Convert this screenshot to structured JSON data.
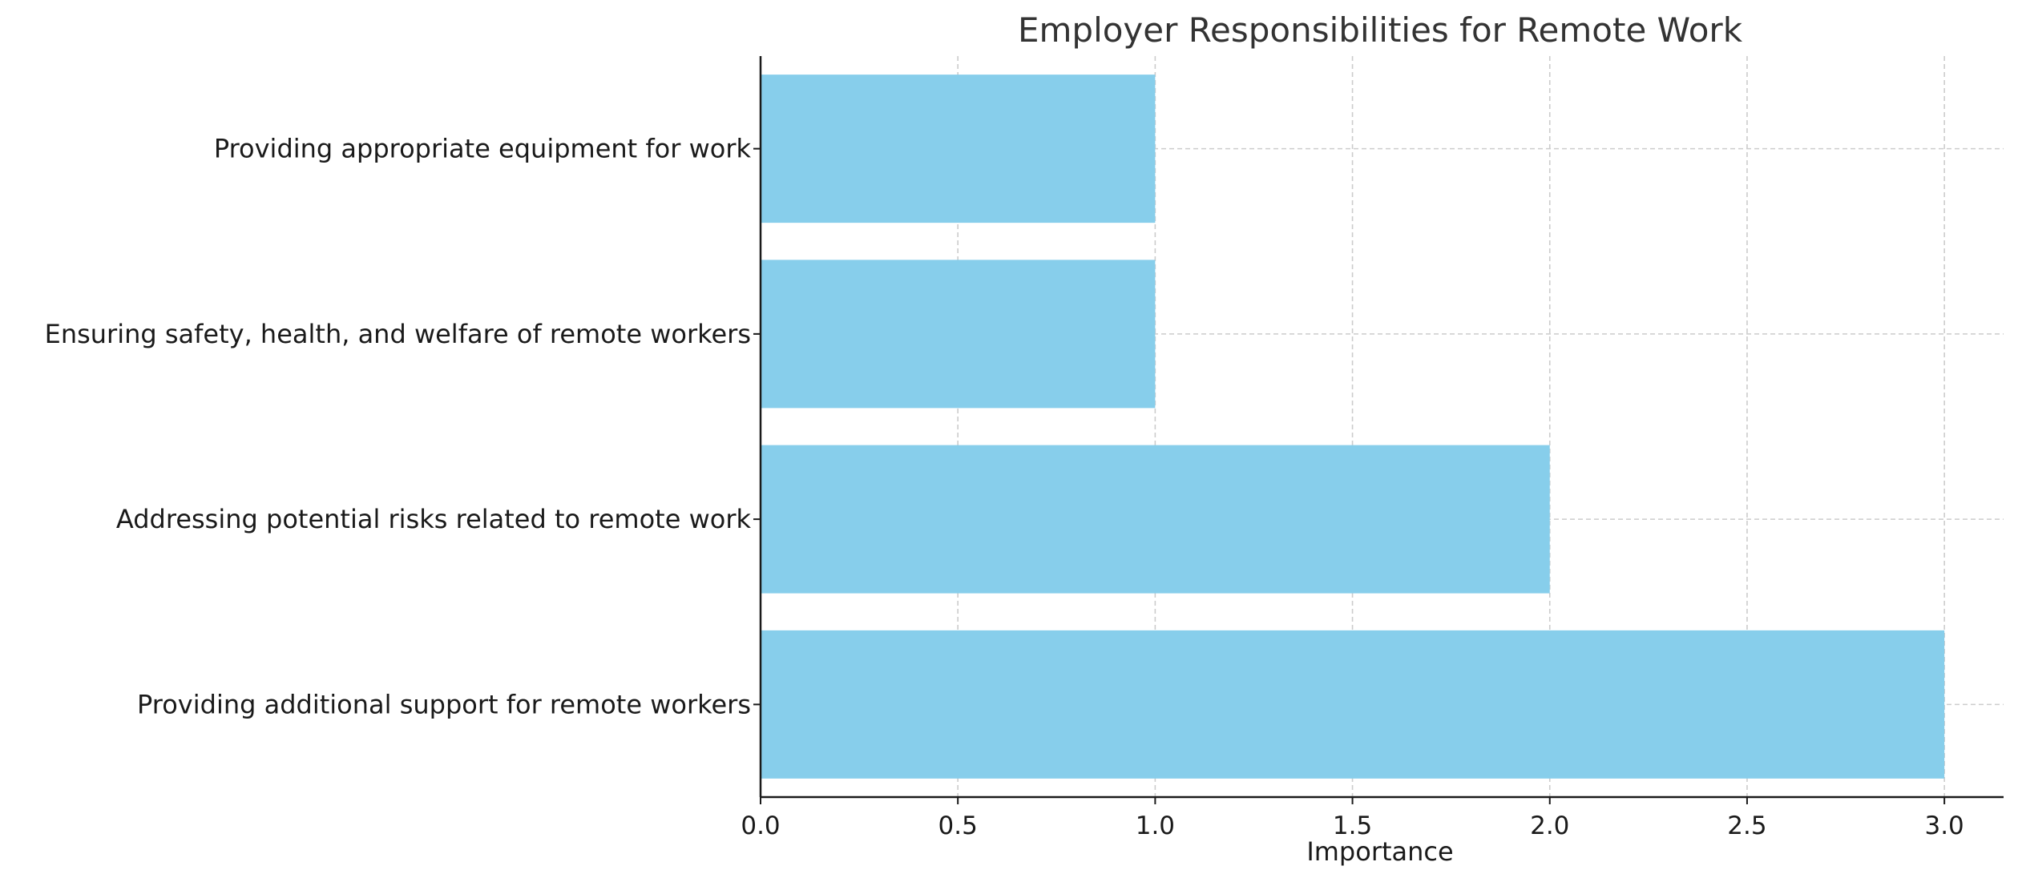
{
  "chart_data": {
    "type": "bar",
    "orientation": "horizontal",
    "title": "Employer Responsibilities for Remote Work",
    "xlabel": "Importance",
    "ylabel": "",
    "categories": [
      "Providing appropriate equipment for work",
      "Ensuring safety, health, and welfare of remote workers",
      "Addressing potential risks related to remote work",
      "Providing additional support for remote workers"
    ],
    "values": [
      1,
      1,
      2,
      3
    ],
    "xlim": [
      0,
      3.15
    ],
    "xticks": [
      "0.0",
      "0.5",
      "1.0",
      "1.5",
      "2.0",
      "2.5",
      "3.0"
    ],
    "grid": true,
    "bar_color": "#87CEEB",
    "grid_color": "#cccccc",
    "axis_color": "#1a1a1a"
  }
}
